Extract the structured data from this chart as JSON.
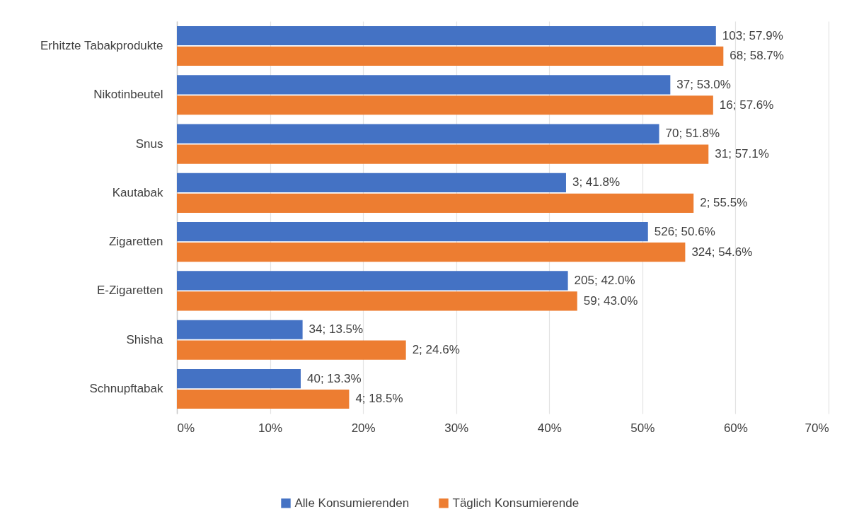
{
  "chart_data": {
    "type": "bar",
    "orientation": "horizontal",
    "categories": [
      "Erhitzte Tabakprodukte",
      "Nikotinbeutel",
      "Snus",
      "Kautabak",
      "Zigaretten",
      "E-Zigaretten",
      "Shisha",
      "Schnupftabak"
    ],
    "series": [
      {
        "name": "Alle Konsumierenden",
        "color": "#4472c4",
        "values": [
          57.9,
          53.0,
          51.8,
          41.8,
          50.6,
          42.0,
          13.5,
          13.3
        ],
        "value_labels": [
          "103; 57.9%",
          "37; 53.0%",
          "70; 51.8%",
          "3; 41.8%",
          "526; 50.6%",
          "205; 42.0%",
          "34; 13.5%",
          "40; 13.3%"
        ]
      },
      {
        "name": "Täglich Konsumierende",
        "color": "#ed7d31",
        "values": [
          58.7,
          57.6,
          57.1,
          55.5,
          54.6,
          43.0,
          24.6,
          18.5
        ],
        "value_labels": [
          "68; 58.7%",
          "16; 57.6%",
          "31; 57.1%",
          "2; 55.5%",
          "324; 54.6%",
          "59; 43.0%",
          "2; 24.6%",
          "4; 18.5%"
        ]
      }
    ],
    "xlim": [
      0,
      70
    ],
    "xticks": [
      {
        "value": 0,
        "label": "0%"
      },
      {
        "value": 10,
        "label": "10%"
      },
      {
        "value": 20,
        "label": "20%"
      },
      {
        "value": 30,
        "label": "30%"
      },
      {
        "value": 40,
        "label": "40%"
      },
      {
        "value": 50,
        "label": "50%"
      },
      {
        "value": 60,
        "label": "60%"
      },
      {
        "value": 70,
        "label": "70%"
      }
    ],
    "grid": "x",
    "legend": "bottom"
  }
}
